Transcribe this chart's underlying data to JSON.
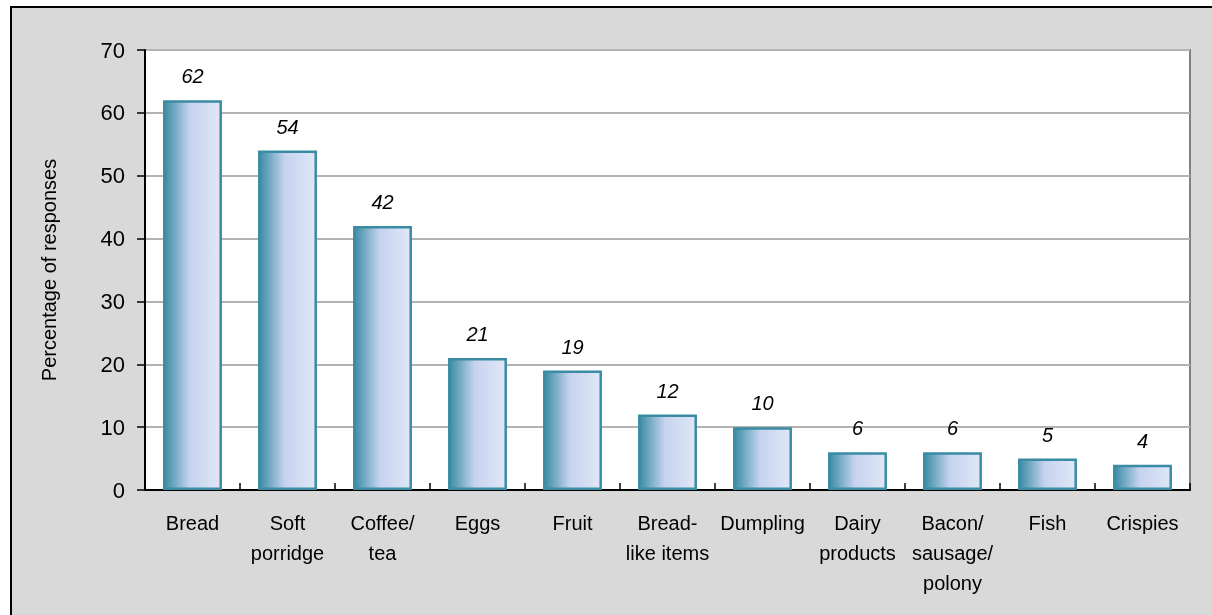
{
  "chart_data": {
    "type": "bar",
    "categories": [
      "Bread",
      "Soft porridge",
      "Coffee/tea",
      "Eggs",
      "Fruit",
      "Bread-like items",
      "Dumpling",
      "Dairy products",
      "Bacon/sausage/polony",
      "Fish",
      "Crispies"
    ],
    "values": [
      62,
      54,
      42,
      21,
      19,
      12,
      10,
      6,
      6,
      5,
      4
    ],
    "color": "#3a8ca4",
    "ylabel": "Percentage of responses",
    "ylim": [
      0,
      70
    ],
    "yticks": [
      0,
      10,
      20,
      30,
      40,
      50,
      60,
      70
    ],
    "grid": "y",
    "data_labels": true
  }
}
